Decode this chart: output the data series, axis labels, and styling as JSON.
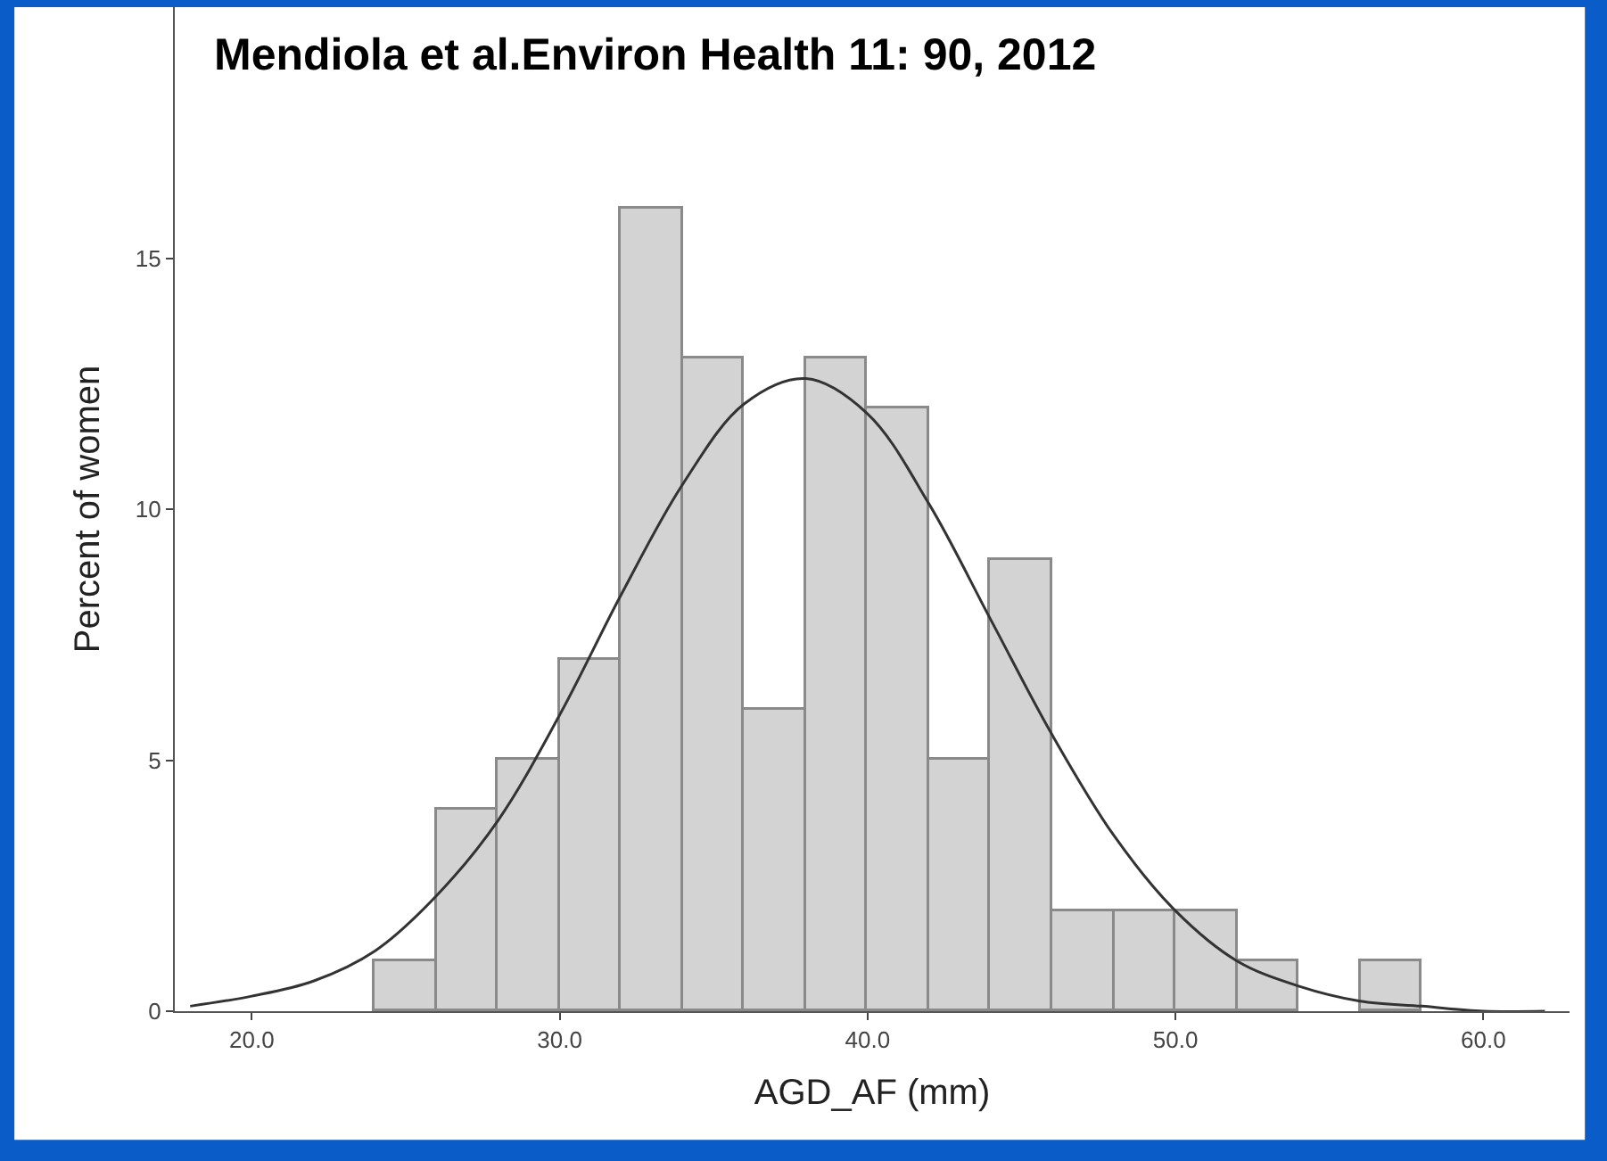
{
  "chart_data": {
    "type": "histogram",
    "title": "Mendiola et al.Environ Health 11: 90, 2012",
    "xlabel": "AGD_AF (mm)",
    "ylabel": "Percent of women",
    "bins": [
      24,
      26,
      28,
      30,
      32,
      34,
      36,
      38,
      40,
      42,
      44,
      46,
      48,
      50,
      52,
      54,
      56,
      58
    ],
    "values": [
      1,
      4,
      5,
      7,
      16,
      13,
      6,
      13,
      12,
      5,
      9,
      2,
      2,
      2,
      1,
      0,
      1
    ],
    "color": "#d3d3d3",
    "series": [
      {
        "type": "line",
        "color": "#333333",
        "x": [
          18,
          20,
          22,
          24,
          26,
          28,
          30,
          32,
          34,
          36,
          38,
          40,
          42,
          44,
          46,
          48,
          50,
          52,
          54,
          56,
          58,
          60,
          62
        ],
        "values": [
          0.1,
          0.3,
          0.6,
          1.2,
          2.3,
          3.8,
          5.9,
          8.3,
          10.5,
          12.1,
          12.6,
          11.9,
          10.1,
          7.8,
          5.5,
          3.5,
          2.0,
          1.0,
          0.5,
          0.2,
          0.1,
          0.0,
          0.0
        ]
      }
    ],
    "xlim": [
      17.5,
      62.8
    ],
    "xticks": [
      {
        "value": 20,
        "label": "20.0"
      },
      {
        "value": 30,
        "label": "30.0"
      },
      {
        "value": 40,
        "label": "40.0"
      },
      {
        "value": 50,
        "label": "50.0"
      },
      {
        "value": 60,
        "label": "60.0"
      }
    ],
    "ylim": [
      0,
      20
    ],
    "yticks": [
      0,
      5,
      10,
      15
    ]
  }
}
